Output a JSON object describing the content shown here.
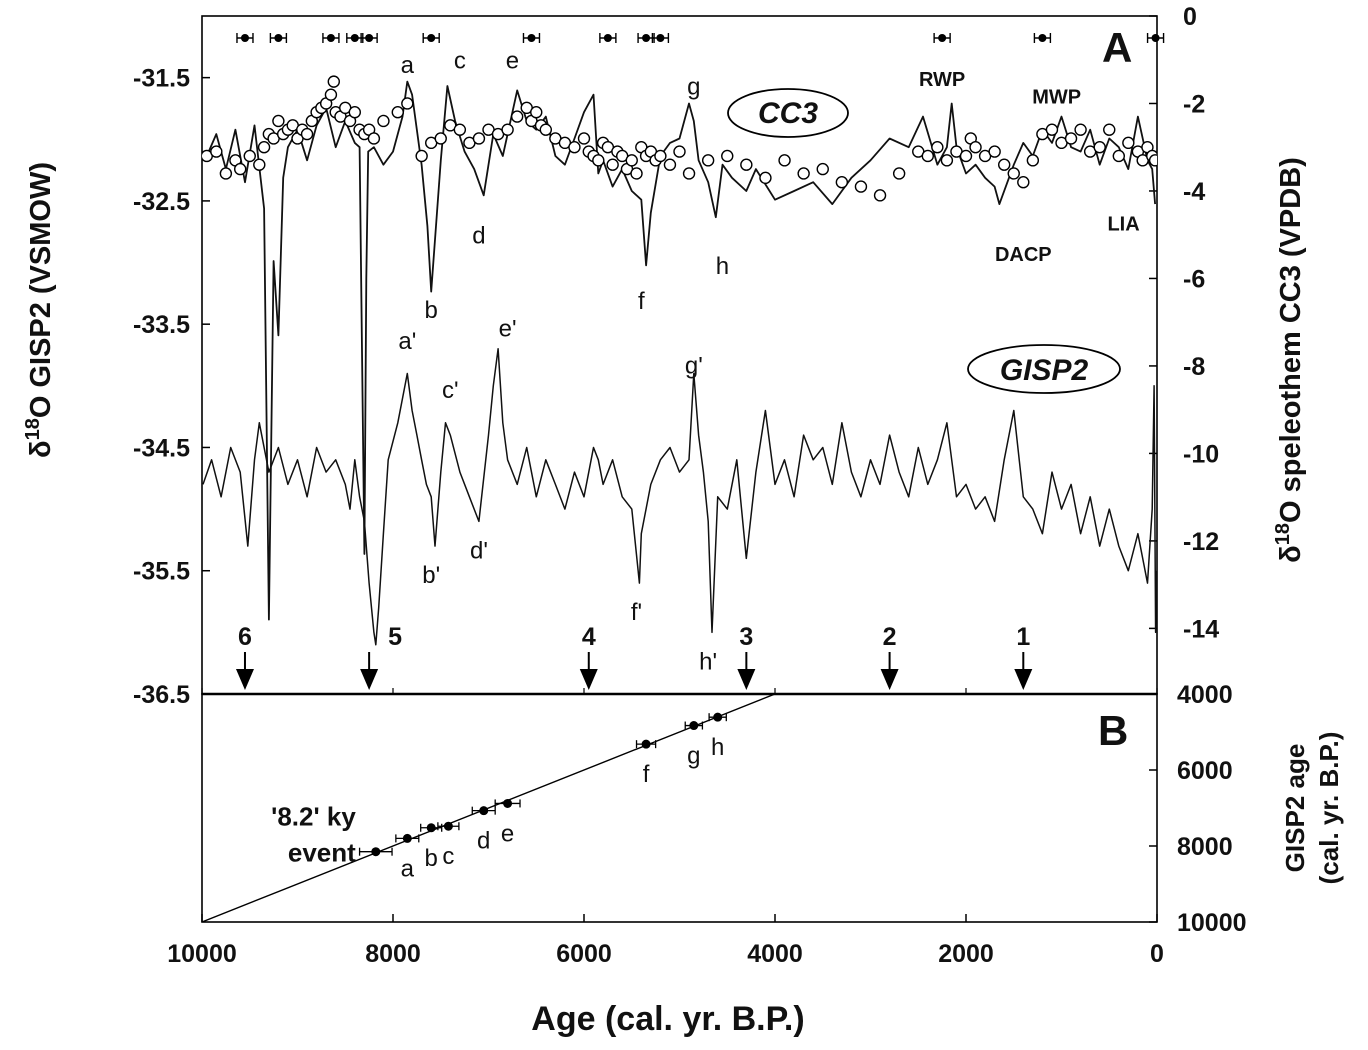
{
  "chart_data": [
    {
      "panel": "A",
      "type": "line",
      "panel_label": "A",
      "xlabel": "Age (cal. yr. B.P.)",
      "xlim": [
        10000,
        0
      ],
      "x_reversed": true,
      "ylabel_left": "δ 18O GISP2 (VSMOW)",
      "ylabel_left_parts": {
        "sym": "δ",
        "sup": "18",
        "rest": "O  GISP2 (VSMOW)"
      },
      "ylim_left": [
        -36.5,
        -31.0
      ],
      "yticks_left": [
        "-31.5",
        "-32.5",
        "-33.5",
        "-34.5",
        "-35.5",
        "-36.5"
      ],
      "ylabel_right": "δ 18O speleothem CC3 (VPDB)",
      "ylabel_right_parts": {
        "sym": "δ",
        "sup": "18",
        "rest": "O  speleothem CC3 (VPDB)"
      },
      "ylim_right": [
        -15.5,
        0
      ],
      "yticks_right": [
        "0",
        "-2",
        "-4",
        "-6",
        "-8",
        "-10",
        "-12",
        "-14"
      ],
      "series_labels": [
        "CC3",
        "GISP2"
      ],
      "series": [
        {
          "name": "CC3",
          "axis": "right",
          "style": "line",
          "x": [
            9950,
            9850,
            9750,
            9650,
            9550,
            9450,
            9350,
            9300,
            9250,
            9200,
            9150,
            9100,
            9000,
            8900,
            8800,
            8700,
            8600,
            8500,
            8400,
            8350,
            8300,
            8280,
            8260,
            8200,
            8100,
            8000,
            7900,
            7850,
            7800,
            7700,
            7640,
            7600,
            7500,
            7430,
            7350,
            7250,
            7150,
            7050,
            6950,
            6850,
            6700,
            6600,
            6500,
            6400,
            6300,
            6200,
            6100,
            6000,
            5900,
            5850,
            5800,
            5700,
            5600,
            5500,
            5400,
            5350,
            5300,
            5200,
            5100,
            5000,
            4900,
            4850,
            4800,
            4700,
            4620,
            4550,
            4450,
            4300,
            4200,
            4000,
            3800,
            3600,
            3400,
            3200,
            3000,
            2800,
            2600,
            2450,
            2300,
            2200,
            2150,
            2100,
            2000,
            1900,
            1800,
            1700,
            1650,
            1500,
            1400,
            1300,
            1200,
            1100,
            1000,
            900,
            800,
            700,
            600,
            500,
            400,
            300,
            200,
            100,
            50,
            20
          ],
          "y": [
            -3.2,
            -2.7,
            -3.5,
            -2.6,
            -3.8,
            -2.5,
            -4.4,
            -13.8,
            -5.6,
            -7.3,
            -3.7,
            -3.0,
            -2.6,
            -3.3,
            -2.5,
            -2.1,
            -3.0,
            -2.4,
            -2.9,
            -3.0,
            -12.3,
            -6.0,
            -3.1,
            -3.0,
            -3.4,
            -3.1,
            -2.3,
            -1.5,
            -1.8,
            -3.4,
            -4.8,
            -6.3,
            -3.3,
            -1.6,
            -2.4,
            -3.1,
            -3.5,
            -4.1,
            -2.7,
            -3.2,
            -1.7,
            -2.4,
            -2.6,
            -2.3,
            -3.2,
            -3.4,
            -2.8,
            -2.2,
            -1.8,
            -3.6,
            -3.3,
            -3.9,
            -3.5,
            -4.0,
            -4.2,
            -5.7,
            -4.5,
            -3.2,
            -2.9,
            -2.8,
            -2.0,
            -2.4,
            -3.3,
            -3.8,
            -4.6,
            -3.4,
            -3.7,
            -4.0,
            -3.5,
            -4.2,
            -4.0,
            -3.8,
            -4.3,
            -3.7,
            -3.3,
            -2.8,
            -3.0,
            -2.3,
            -3.4,
            -3.0,
            -2.0,
            -3.0,
            -3.6,
            -3.4,
            -3.7,
            -3.9,
            -4.3,
            -3.4,
            -2.9,
            -3.2,
            -2.6,
            -2.9,
            -2.3,
            -3.0,
            -3.1,
            -2.6,
            -3.4,
            -2.8,
            -3.0,
            -3.5,
            -2.3,
            -3.3,
            -3.5,
            -4.3
          ]
        },
        {
          "name": "CC3 U-series dated samples",
          "axis": "right",
          "style": "open-circles",
          "x": [
            9950,
            9850,
            9750,
            9650,
            9600,
            9500,
            9400,
            9350,
            9300,
            9250,
            9200,
            9150,
            9100,
            9050,
            9000,
            8950,
            8900,
            8850,
            8800,
            8750,
            8700,
            8650,
            8620,
            8600,
            8550,
            8500,
            8450,
            8400,
            8350,
            8300,
            8250,
            8200,
            8100,
            7950,
            7850,
            7700,
            7600,
            7500,
            7400,
            7300,
            7200,
            7100,
            7000,
            6900,
            6800,
            6700,
            6600,
            6550,
            6500,
            6450,
            6400,
            6300,
            6200,
            6100,
            6000,
            5950,
            5900,
            5850,
            5800,
            5750,
            5700,
            5650,
            5600,
            5550,
            5500,
            5450,
            5400,
            5350,
            5300,
            5250,
            5200,
            5100,
            5000,
            4900,
            4700,
            4500,
            4300,
            4100,
            3900,
            3700,
            3500,
            3300,
            3100,
            2900,
            2700,
            2500,
            2400,
            2300,
            2200,
            2100,
            2000,
            1950,
            1900,
            1800,
            1700,
            1600,
            1500,
            1400,
            1300,
            1200,
            1100,
            1000,
            900,
            800,
            700,
            600,
            500,
            400,
            300,
            200,
            150,
            100,
            50,
            20
          ],
          "y": [
            -3.2,
            -3.1,
            -3.6,
            -3.3,
            -3.5,
            -3.2,
            -3.4,
            -3.0,
            -2.7,
            -2.8,
            -2.4,
            -2.7,
            -2.6,
            -2.5,
            -2.8,
            -2.6,
            -2.7,
            -2.4,
            -2.2,
            -2.1,
            -2.0,
            -1.8,
            -1.5,
            -2.2,
            -2.3,
            -2.1,
            -2.4,
            -2.2,
            -2.6,
            -2.7,
            -2.6,
            -2.8,
            -2.4,
            -2.2,
            -2.0,
            -3.2,
            -2.9,
            -2.8,
            -2.5,
            -2.6,
            -2.9,
            -2.8,
            -2.6,
            -2.7,
            -2.6,
            -2.3,
            -2.1,
            -2.4,
            -2.2,
            -2.5,
            -2.6,
            -2.8,
            -2.9,
            -3.0,
            -2.8,
            -3.1,
            -3.2,
            -3.3,
            -2.9,
            -3.0,
            -3.4,
            -3.1,
            -3.2,
            -3.5,
            -3.3,
            -3.6,
            -3.0,
            -3.2,
            -3.1,
            -3.3,
            -3.2,
            -3.4,
            -3.1,
            -3.6,
            -3.3,
            -3.2,
            -3.4,
            -3.7,
            -3.3,
            -3.6,
            -3.5,
            -3.8,
            -3.9,
            -4.1,
            -3.6,
            -3.1,
            -3.2,
            -3.0,
            -3.3,
            -3.1,
            -3.2,
            -2.8,
            -3.0,
            -3.2,
            -3.1,
            -3.4,
            -3.6,
            -3.8,
            -3.3,
            -2.7,
            -2.6,
            -2.9,
            -2.8,
            -2.6,
            -3.1,
            -3.0,
            -2.6,
            -3.2,
            -2.9,
            -3.1,
            -3.3,
            -3.0,
            -3.2,
            -3.3
          ]
        },
        {
          "name": "GISP2",
          "axis": "left",
          "style": "line",
          "x": [
            9990,
            9900,
            9800,
            9700,
            9600,
            9520,
            9450,
            9400,
            9300,
            9200,
            9100,
            9000,
            8900,
            8800,
            8700,
            8600,
            8500,
            8450,
            8400,
            8350,
            8300,
            8250,
            8200,
            8180,
            8150,
            8100,
            8050,
            7950,
            7850,
            7800,
            7750,
            7700,
            7650,
            7600,
            7560,
            7500,
            7450,
            7400,
            7300,
            7200,
            7100,
            7000,
            6950,
            6900,
            6850,
            6800,
            6700,
            6600,
            6500,
            6400,
            6300,
            6200,
            6100,
            6000,
            5900,
            5850,
            5800,
            5700,
            5600,
            5500,
            5420,
            5400,
            5300,
            5200,
            5100,
            5000,
            4900,
            4850,
            4800,
            4750,
            4700,
            4660,
            4600,
            4500,
            4400,
            4300,
            4200,
            4100,
            4000,
            3900,
            3800,
            3700,
            3600,
            3500,
            3400,
            3300,
            3200,
            3100,
            3000,
            2900,
            2800,
            2700,
            2600,
            2500,
            2400,
            2300,
            2200,
            2100,
            2000,
            1900,
            1800,
            1700,
            1600,
            1500,
            1400,
            1300,
            1200,
            1100,
            1000,
            900,
            800,
            700,
            600,
            500,
            400,
            300,
            200,
            100,
            50,
            30,
            15,
            5
          ],
          "y": [
            -34.8,
            -34.6,
            -34.9,
            -34.5,
            -34.7,
            -35.3,
            -34.6,
            -34.3,
            -34.7,
            -34.5,
            -34.8,
            -34.6,
            -34.9,
            -34.5,
            -34.7,
            -34.6,
            -34.8,
            -35.0,
            -34.6,
            -34.9,
            -35.1,
            -35.6,
            -36.0,
            -36.1,
            -35.8,
            -35.2,
            -34.6,
            -34.3,
            -33.9,
            -34.2,
            -34.4,
            -34.6,
            -34.8,
            -34.9,
            -35.3,
            -34.7,
            -34.3,
            -34.4,
            -34.7,
            -34.9,
            -35.1,
            -34.4,
            -34.0,
            -33.7,
            -34.3,
            -34.6,
            -34.8,
            -34.5,
            -34.9,
            -34.6,
            -34.8,
            -35.0,
            -34.7,
            -34.9,
            -34.5,
            -34.6,
            -34.8,
            -34.6,
            -34.9,
            -35.0,
            -35.6,
            -35.2,
            -34.8,
            -34.6,
            -34.5,
            -34.7,
            -34.6,
            -33.9,
            -34.4,
            -34.7,
            -35.1,
            -36.0,
            -34.9,
            -35.0,
            -34.6,
            -35.4,
            -34.7,
            -34.2,
            -34.8,
            -34.6,
            -34.9,
            -34.4,
            -34.6,
            -34.5,
            -34.8,
            -34.3,
            -34.7,
            -34.9,
            -34.6,
            -34.8,
            -34.4,
            -34.7,
            -34.9,
            -34.5,
            -34.8,
            -34.6,
            -34.3,
            -34.9,
            -34.8,
            -35.0,
            -34.9,
            -35.1,
            -34.6,
            -34.2,
            -34.9,
            -35.0,
            -35.2,
            -34.7,
            -35.0,
            -34.8,
            -35.2,
            -34.9,
            -35.3,
            -35.0,
            -35.3,
            -35.5,
            -35.2,
            -35.6,
            -35.0,
            -34.0,
            -36.0,
            -35.5
          ]
        }
      ],
      "dating_markers_x": [
        9550,
        9200,
        8650,
        8400,
        8250,
        7600,
        6550,
        5750,
        5350,
        5200,
        2250,
        1200,
        15
      ],
      "event_letters_cc3": [
        {
          "text": "a",
          "x": 7850,
          "y": -1.3
        },
        {
          "text": "c",
          "x": 7300,
          "y": -1.2
        },
        {
          "text": "e",
          "x": 6750,
          "y": -1.2
        },
        {
          "text": "g",
          "x": 4850,
          "y": -1.8
        },
        {
          "text": "b",
          "x": 7600,
          "y": -6.9
        },
        {
          "text": "d",
          "x": 7100,
          "y": -5.2
        },
        {
          "text": "f",
          "x": 5400,
          "y": -6.7
        },
        {
          "text": "h",
          "x": 4550,
          "y": -5.9
        }
      ],
      "event_letters_gisp2": [
        {
          "text": "a'",
          "x": 7850,
          "y": -33.7
        },
        {
          "text": "c'",
          "x": 7400,
          "y": -34.1
        },
        {
          "text": "e'",
          "x": 6800,
          "y": -33.6
        },
        {
          "text": "g'",
          "x": 4850,
          "y": -33.9
        },
        {
          "text": "b'",
          "x": 7600,
          "y": -35.6
        },
        {
          "text": "d'",
          "x": 7100,
          "y": -35.4
        },
        {
          "text": "f'",
          "x": 5450,
          "y": -35.9
        },
        {
          "text": "h'",
          "x": 4700,
          "y": -36.3
        }
      ],
      "climate_periods": [
        {
          "text": "RWP",
          "x": 2250,
          "y": -1.6
        },
        {
          "text": "MWP",
          "x": 1050,
          "y": -2.0
        },
        {
          "text": "DACP",
          "x": 1400,
          "y": -5.6
        },
        {
          "text": "LIA",
          "x": 350,
          "y": -4.9
        }
      ],
      "bond_events": [
        {
          "label": "6",
          "x": 9550,
          "label_dx": 0
        },
        {
          "label": "5",
          "x": 8250,
          "label_dx": 26
        },
        {
          "label": "4",
          "x": 5950,
          "label_dx": 0
        },
        {
          "label": "3",
          "x": 4300,
          "label_dx": 0
        },
        {
          "label": "2",
          "x": 2800,
          "label_dx": 0
        },
        {
          "label": "1",
          "x": 1400,
          "label_dx": 0
        }
      ]
    },
    {
      "panel": "B",
      "type": "scatter",
      "panel_label": "B",
      "xlabel": "Age (cal. yr. B.P.)",
      "xlim": [
        10000,
        0
      ],
      "xticks": [
        "10000",
        "8000",
        "6000",
        "4000",
        "2000",
        "0"
      ],
      "ylabel": "GISP2 age (cal. yr. B.P.)",
      "ylabel_lines": [
        "GISP2 age",
        "(cal. yr. B.P.)"
      ],
      "ylim": [
        4000,
        10000
      ],
      "y_reversed": true,
      "yticks_right": [
        "4000",
        "6000",
        "8000",
        "10000"
      ],
      "reference_line": {
        "x": [
          10000,
          4000
        ],
        "y": [
          10000,
          4000
        ]
      },
      "points": [
        {
          "label": "'8.2' ky event",
          "x": 8180,
          "y": 8150,
          "xerr": 170,
          "yerr": 100
        },
        {
          "label": "a",
          "x": 7850,
          "y": 7800,
          "xerr": 120,
          "yerr": 80
        },
        {
          "label": "b",
          "x": 7600,
          "y": 7520,
          "xerr": 110,
          "yerr": 70
        },
        {
          "label": "c",
          "x": 7420,
          "y": 7480,
          "xerr": 110,
          "yerr": 70
        },
        {
          "label": "d",
          "x": 7050,
          "y": 7070,
          "xerr": 120,
          "yerr": 70
        },
        {
          "label": "e",
          "x": 6800,
          "y": 6880,
          "xerr": 130,
          "yerr": 70
        },
        {
          "label": "f",
          "x": 5350,
          "y": 5320,
          "xerr": 100,
          "yerr": 60
        },
        {
          "label": "g",
          "x": 4850,
          "y": 4830,
          "xerr": 90,
          "yerr": 60
        },
        {
          "label": "h",
          "x": 4600,
          "y": 4610,
          "xerr": 90,
          "yerr": 60
        }
      ],
      "event_label_lines": [
        "'8.2' ky",
        "event"
      ]
    }
  ]
}
